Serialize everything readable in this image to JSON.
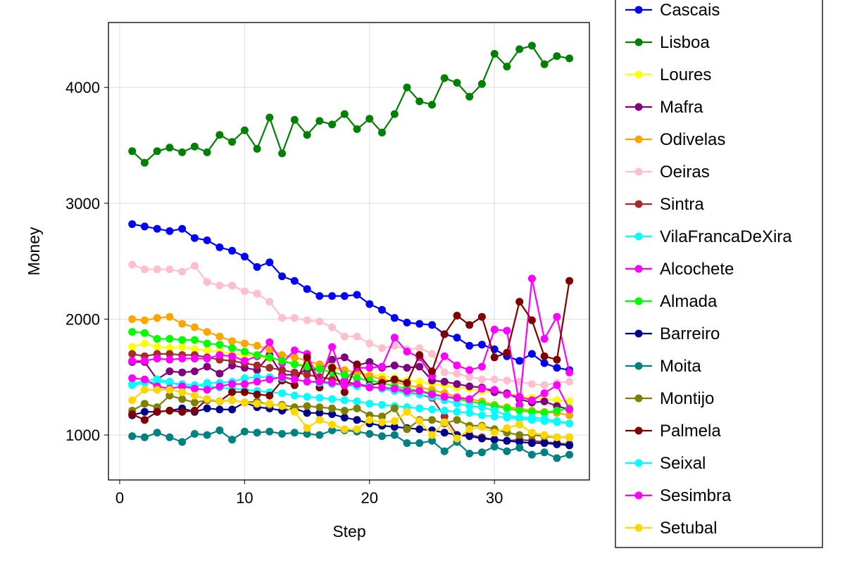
{
  "chart_data": {
    "type": "line",
    "xlabel": "Step",
    "ylabel": "Money",
    "xlim": [
      -0.9,
      37.6
    ],
    "ylim": [
      612,
      4560
    ],
    "xticks": [
      0,
      10,
      20,
      30
    ],
    "yticks": [
      1000,
      2000,
      3000,
      4000
    ],
    "grid": true,
    "legend_position": "right",
    "x": [
      1,
      2,
      3,
      4,
      5,
      6,
      7,
      8,
      9,
      10,
      11,
      12,
      13,
      14,
      15,
      16,
      17,
      18,
      19,
      20,
      21,
      22,
      23,
      24,
      25,
      26,
      27,
      28,
      29,
      30,
      31,
      32,
      33,
      34,
      35,
      36
    ],
    "series": [
      {
        "name": "Cascais",
        "color": "#0000ff",
        "values": [
          2820,
          2800,
          2780,
          2760,
          2780,
          2700,
          2680,
          2620,
          2590,
          2540,
          2450,
          2490,
          2370,
          2330,
          2260,
          2200,
          2200,
          2200,
          2210,
          2130,
          2080,
          2010,
          1970,
          1960,
          1950,
          1870,
          1840,
          1770,
          1780,
          1740,
          1680,
          1640,
          1700,
          1620,
          1580,
          1560
        ]
      },
      {
        "name": "Lisboa",
        "color": "#008000",
        "values": [
          3450,
          3350,
          3450,
          3480,
          3440,
          3490,
          3440,
          3590,
          3530,
          3630,
          3470,
          3740,
          3430,
          3720,
          3590,
          3710,
          3680,
          3770,
          3640,
          3730,
          3610,
          3770,
          4000,
          3880,
          3850,
          4080,
          4040,
          3920,
          4030,
          4290,
          4180,
          4330,
          4360,
          4200,
          4270,
          4250
        ]
      },
      {
        "name": "Loures",
        "color": "#ffff00",
        "values": [
          1760,
          1790,
          1760,
          1750,
          1760,
          1740,
          1730,
          1720,
          1700,
          1690,
          1680,
          1660,
          1640,
          1620,
          1600,
          1590,
          1570,
          1560,
          1540,
          1520,
          1510,
          1490,
          1470,
          1460,
          1440,
          1430,
          1410,
          1400,
          1380,
          1370,
          1350,
          1340,
          1320,
          1310,
          1300,
          1290
        ]
      },
      {
        "name": "Mafra",
        "color": "#800080",
        "values": [
          1630,
          1630,
          1480,
          1550,
          1540,
          1550,
          1590,
          1530,
          1600,
          1580,
          1560,
          1690,
          1520,
          1520,
          1560,
          1570,
          1650,
          1670,
          1600,
          1630,
          1580,
          1600,
          1580,
          1590,
          1470,
          1460,
          1440,
          1420,
          1410,
          1370,
          1360,
          1310,
          1280,
          1290,
          1250,
          1220
        ]
      },
      {
        "name": "Odivelas",
        "color": "#ffa500",
        "values": [
          2000,
          1990,
          2010,
          2020,
          1960,
          1930,
          1890,
          1850,
          1810,
          1790,
          1770,
          1740,
          1690,
          1670,
          1640,
          1610,
          1590,
          1560,
          1540,
          1510,
          1480,
          1460,
          1430,
          1410,
          1390,
          1360,
          1330,
          1310,
          1290,
          1260,
          1240,
          1230,
          1210,
          1200,
          1190,
          1170
        ]
      },
      {
        "name": "Oeiras",
        "color": "#ffc0cb",
        "values": [
          2470,
          2430,
          2430,
          2430,
          2410,
          2460,
          2320,
          2290,
          2290,
          2240,
          2220,
          2150,
          2010,
          2010,
          1990,
          1980,
          1930,
          1850,
          1850,
          1790,
          1750,
          1770,
          1740,
          1750,
          1700,
          1540,
          1530,
          1500,
          1480,
          1480,
          1470,
          1460,
          1440,
          1430,
          1450,
          1460
        ]
      },
      {
        "name": "Sintra",
        "color": "#a52a2a",
        "values": [
          1700,
          1680,
          1700,
          1700,
          1690,
          1690,
          1670,
          1650,
          1640,
          1620,
          1600,
          1580,
          1560,
          1540,
          1520,
          1500,
          1480,
          1460,
          1440,
          1420,
          1400,
          1380,
          1370,
          1350,
          1320,
          1160,
          1000,
          1000,
          980,
          960,
          950,
          960,
          950,
          940,
          930,
          920
        ]
      },
      {
        "name": "VilaFrancaDeXira",
        "color": "#00ffff",
        "values": [
          1430,
          1450,
          1460,
          1450,
          1440,
          1430,
          1420,
          1410,
          1400,
          1390,
          1380,
          1370,
          1360,
          1340,
          1330,
          1320,
          1310,
          1300,
          1290,
          1270,
          1260,
          1250,
          1240,
          1230,
          1220,
          1210,
          1200,
          1190,
          1170,
          1160,
          1150,
          1140,
          1130,
          1120,
          1110,
          1100
        ]
      },
      {
        "name": "Alcochete",
        "color": "#ff00ff",
        "values": [
          1640,
          1640,
          1660,
          1650,
          1660,
          1660,
          1660,
          1690,
          1680,
          1640,
          1680,
          1800,
          1620,
          1730,
          1700,
          1450,
          1760,
          1470,
          1580,
          1580,
          1590,
          1840,
          1720,
          1670,
          1510,
          1680,
          1600,
          1560,
          1590,
          1910,
          1900,
          1260,
          2350,
          1830,
          2020,
          1540
        ]
      },
      {
        "name": "Almada",
        "color": "#00ff00",
        "values": [
          1890,
          1880,
          1830,
          1830,
          1820,
          1820,
          1790,
          1780,
          1750,
          1720,
          1690,
          1670,
          1640,
          1610,
          1590,
          1570,
          1540,
          1520,
          1490,
          1470,
          1450,
          1420,
          1400,
          1380,
          1360,
          1330,
          1310,
          1290,
          1270,
          1250,
          1230,
          1210,
          1200,
          1190,
          1210,
          1230
        ]
      },
      {
        "name": "Barreiro",
        "color": "#00008b",
        "values": [
          1170,
          1200,
          1200,
          1210,
          1230,
          1200,
          1230,
          1220,
          1220,
          1280,
          1240,
          1230,
          1210,
          1230,
          1190,
          1190,
          1180,
          1150,
          1130,
          1100,
          1080,
          1070,
          1060,
          1050,
          1040,
          1020,
          1000,
          990,
          970,
          960,
          950,
          940,
          930,
          930,
          920,
          910
        ]
      },
      {
        "name": "Moita",
        "color": "#008080",
        "values": [
          990,
          980,
          1020,
          980,
          940,
          1010,
          1000,
          1040,
          960,
          1030,
          1020,
          1030,
          1010,
          1020,
          1010,
          1000,
          1040,
          1040,
          1030,
          1010,
          990,
          1000,
          930,
          930,
          950,
          860,
          940,
          840,
          850,
          900,
          860,
          890,
          830,
          850,
          800,
          830
        ]
      },
      {
        "name": "Montijo",
        "color": "#808000",
        "values": [
          1210,
          1270,
          1240,
          1340,
          1310,
          1280,
          1300,
          1290,
          1300,
          1280,
          1290,
          1260,
          1260,
          1240,
          1250,
          1240,
          1230,
          1210,
          1230,
          1170,
          1160,
          1230,
          1050,
          1130,
          1130,
          1100,
          1130,
          1080,
          1080,
          1050,
          1020,
          1000,
          1000,
          990,
          980,
          980
        ]
      },
      {
        "name": "Palmela",
        "color": "#800000",
        "values": [
          1180,
          1130,
          1200,
          1210,
          1200,
          1210,
          1310,
          1290,
          1370,
          1370,
          1350,
          1340,
          1470,
          1430,
          1670,
          1410,
          1580,
          1370,
          1610,
          1430,
          1450,
          1480,
          1450,
          1690,
          1550,
          1870,
          2030,
          1950,
          2020,
          1670,
          1710,
          2150,
          1990,
          1680,
          1650,
          2330
        ]
      },
      {
        "name": "Seixal",
        "color": "#00ffff",
        "values": [
          1440,
          1470,
          1480,
          1460,
          1420,
          1420,
          1450,
          1450,
          1460,
          1490,
          1500,
          1500,
          1490,
          1480,
          1460,
          1450,
          1440,
          1430,
          1420,
          1420,
          1400,
          1380,
          1360,
          1350,
          1330,
          1300,
          1270,
          1250,
          1240,
          1210,
          1170,
          1150,
          1150,
          1140,
          1120,
          1100
        ]
      },
      {
        "name": "Sesimbra",
        "color": "#ff00ff",
        "values": [
          1490,
          1480,
          1420,
          1400,
          1420,
          1400,
          1390,
          1420,
          1440,
          1440,
          1460,
          1480,
          1500,
          1480,
          1460,
          1460,
          1450,
          1430,
          1440,
          1410,
          1410,
          1400,
          1380,
          1380,
          1350,
          1330,
          1320,
          1310,
          1400,
          1390,
          1350,
          1330,
          1300,
          1360,
          1430,
          1220
        ]
      },
      {
        "name": "Setubal",
        "color": "#ffd700",
        "values": [
          1300,
          1390,
          1390,
          1390,
          1370,
          1340,
          1310,
          1290,
          1300,
          1280,
          1270,
          1270,
          1250,
          1200,
          1060,
          1130,
          1090,
          1050,
          1050,
          1130,
          1110,
          1120,
          1200,
          1120,
          1000,
          1110,
          970,
          1050,
          1070,
          1020,
          1060,
          1090,
          1020,
          1000,
          980,
          980
        ]
      }
    ]
  }
}
